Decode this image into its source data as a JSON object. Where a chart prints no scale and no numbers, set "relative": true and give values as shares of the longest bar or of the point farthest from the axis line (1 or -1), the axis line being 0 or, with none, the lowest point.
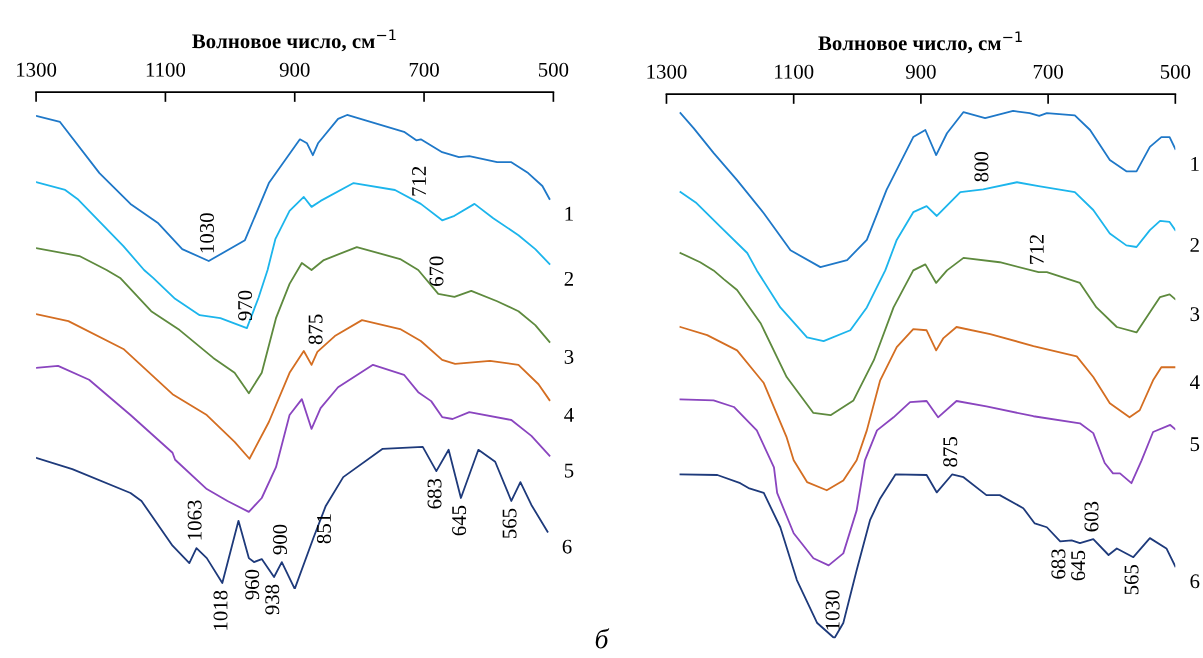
{
  "chart_data": [
    {
      "type": "line",
      "relative": true,
      "xlabel": "Волновое число, см$^{−1}$",
      "xlim": [
        1300,
        500
      ],
      "xticks": [
        1300,
        1100,
        900,
        700,
        500
      ],
      "grid": false,
      "legend": false,
      "marker": "none",
      "line_style": "solid",
      "series": [
        {
          "name": "1",
          "color": "#1f78c8",
          "x": [
            1300,
            1263,
            1202,
            1154,
            1111,
            1074,
            1033,
            977,
            940,
            892,
            881,
            872,
            864,
            833,
            819,
            731,
            712,
            705,
            672,
            646,
            630,
            587,
            565,
            539,
            517,
            506
          ],
          "values": [
            -0.048,
            -0.06,
            -0.163,
            -0.225,
            -0.264,
            -0.316,
            -0.34,
            -0.298,
            -0.183,
            -0.095,
            -0.103,
            -0.127,
            -0.103,
            -0.054,
            -0.046,
            -0.08,
            -0.097,
            -0.095,
            -0.121,
            -0.131,
            -0.129,
            -0.141,
            -0.141,
            -0.163,
            -0.189,
            -0.215
          ]
        },
        {
          "name": "2",
          "color": "#1cb5ec",
          "x": [
            1300,
            1255,
            1236,
            1165,
            1133,
            1119,
            1085,
            1047,
            1015,
            974,
            956,
            942,
            930,
            908,
            886,
            874,
            860,
            809,
            745,
            705,
            672,
            653,
            622,
            593,
            554,
            528,
            506
          ],
          "values": [
            -0.181,
            -0.197,
            -0.215,
            -0.31,
            -0.358,
            -0.374,
            -0.416,
            -0.449,
            -0.455,
            -0.475,
            -0.414,
            -0.358,
            -0.296,
            -0.239,
            -0.211,
            -0.231,
            -0.219,
            -0.183,
            -0.197,
            -0.225,
            -0.258,
            -0.249,
            -0.225,
            -0.254,
            -0.288,
            -0.316,
            -0.346
          ]
        },
        {
          "name": "3",
          "color": "#5e8a3e",
          "x": [
            1300,
            1233,
            1191,
            1170,
            1122,
            1078,
            1026,
            993,
            971,
            951,
            929,
            908,
            889,
            874,
            855,
            804,
            737,
            709,
            678,
            653,
            627,
            587,
            554,
            528,
            506
          ],
          "values": [
            -0.314,
            -0.33,
            -0.358,
            -0.374,
            -0.441,
            -0.479,
            -0.535,
            -0.565,
            -0.606,
            -0.565,
            -0.455,
            -0.386,
            -0.344,
            -0.358,
            -0.338,
            -0.312,
            -0.336,
            -0.358,
            -0.406,
            -0.412,
            -0.4,
            -0.421,
            -0.441,
            -0.469,
            -0.503
          ]
        },
        {
          "name": "4",
          "color": "#d46e22",
          "x": [
            1300,
            1250,
            1165,
            1089,
            1036,
            993,
            970,
            940,
            908,
            886,
            874,
            865,
            838,
            796,
            737,
            705,
            672,
            652,
            598,
            554,
            523,
            506
          ],
          "values": [
            -0.447,
            -0.461,
            -0.517,
            -0.608,
            -0.65,
            -0.704,
            -0.738,
            -0.664,
            -0.565,
            -0.521,
            -0.549,
            -0.523,
            -0.491,
            -0.459,
            -0.477,
            -0.501,
            -0.539,
            -0.547,
            -0.541,
            -0.549,
            -0.588,
            -0.62
          ]
        },
        {
          "name": "5",
          "color": "#8a45bf",
          "x": [
            1300,
            1266,
            1218,
            1154,
            1089,
            1085,
            1036,
            1004,
            971,
            951,
            929,
            908,
            889,
            874,
            860,
            833,
            779,
            731,
            709,
            689,
            672,
            656,
            630,
            565,
            534,
            506
          ],
          "values": [
            -0.555,
            -0.551,
            -0.579,
            -0.65,
            -0.726,
            -0.74,
            -0.799,
            -0.823,
            -0.845,
            -0.817,
            -0.755,
            -0.65,
            -0.618,
            -0.678,
            -0.636,
            -0.594,
            -0.549,
            -0.569,
            -0.604,
            -0.622,
            -0.654,
            -0.658,
            -0.644,
            -0.66,
            -0.692,
            -0.732
          ]
        },
        {
          "name": "6",
          "color": "#1e3a7b",
          "x": [
            1300,
            1244,
            1154,
            1137,
            1089,
            1063,
            1052,
            1036,
            1012,
            987,
            971,
            963,
            951,
            932,
            920,
            900,
            871,
            852,
            825,
            764,
            702,
            681,
            662,
            643,
            616,
            590,
            565,
            551,
            534,
            509
          ],
          "values": [
            -0.736,
            -0.759,
            -0.807,
            -0.823,
            -0.913,
            -0.948,
            -0.918,
            -0.938,
            -0.988,
            -0.863,
            -0.938,
            -0.946,
            -0.94,
            -0.976,
            -0.946,
            -1.0,
            -0.897,
            -0.833,
            -0.775,
            -0.718,
            -0.714,
            -0.763,
            -0.72,
            -0.817,
            -0.72,
            -0.744,
            -0.823,
            -0.785,
            -0.831,
            -0.885
          ]
        }
      ],
      "annotations": [
        {
          "text": "1030",
          "x": 1033,
          "y": -0.34
        },
        {
          "text": "712",
          "x": 705,
          "y": -0.225
        },
        {
          "text": "670",
          "x": 678,
          "y": -0.406
        },
        {
          "text": "970",
          "x": 974,
          "y": -0.475
        },
        {
          "text": "875",
          "x": 865,
          "y": -0.523
        },
        {
          "text": "1063",
          "x": 1052,
          "y": -0.918
        },
        {
          "text": "1018",
          "x": 1012,
          "y": -0.988
        },
        {
          "text": "960",
          "x": 963,
          "y": -0.946
        },
        {
          "text": "938",
          "x": 932,
          "y": -0.976
        },
        {
          "text": "900",
          "x": 920,
          "y": -0.946
        },
        {
          "text": "851",
          "x": 852,
          "y": -0.833
        },
        {
          "text": "683",
          "x": 681,
          "y": -0.763
        },
        {
          "text": "645",
          "x": 643,
          "y": -0.817
        },
        {
          "text": "565",
          "x": 565,
          "y": -0.823
        },
        "б"
      ]
    },
    {
      "type": "line",
      "relative": true,
      "xlabel": "Волновое число, см$^{−1}$",
      "xlim": [
        1300,
        500
      ],
      "xticks": [
        1300,
        1100,
        900,
        700,
        500
      ],
      "grid": false,
      "legend": false,
      "marker": "none",
      "line_style": "solid",
      "series": [
        {
          "name": "1",
          "color": "#1f78c8",
          "x": [
            1278,
            1257,
            1226,
            1189,
            1147,
            1105,
            1058,
            1016,
            985,
            954,
            912,
            893,
            876,
            859,
            833,
            799,
            755,
            729,
            714,
            702,
            658,
            634,
            603,
            577,
            561,
            540,
            522,
            509,
            500
          ],
          "values": [
            -0.035,
            -0.063,
            -0.108,
            -0.158,
            -0.219,
            -0.287,
            -0.318,
            -0.305,
            -0.268,
            -0.176,
            -0.079,
            -0.066,
            -0.112,
            -0.072,
            -0.033,
            -0.044,
            -0.031,
            -0.035,
            -0.04,
            -0.035,
            -0.039,
            -0.066,
            -0.121,
            -0.142,
            -0.142,
            -0.097,
            -0.079,
            -0.079,
            -0.101
          ]
        },
        {
          "name": "2",
          "color": "#1cb5ec",
          "x": [
            1278,
            1254,
            1215,
            1173,
            1158,
            1121,
            1079,
            1053,
            1011,
            985,
            956,
            938,
            912,
            891,
            875,
            838,
            802,
            749,
            715,
            658,
            629,
            603,
            577,
            561,
            540,
            524,
            509,
            500
          ],
          "values": [
            -0.18,
            -0.199,
            -0.244,
            -0.292,
            -0.324,
            -0.392,
            -0.447,
            -0.454,
            -0.434,
            -0.392,
            -0.324,
            -0.268,
            -0.217,
            -0.206,
            -0.224,
            -0.18,
            -0.175,
            -0.162,
            -0.169,
            -0.18,
            -0.213,
            -0.256,
            -0.278,
            -0.281,
            -0.25,
            -0.233,
            -0.235,
            -0.25
          ]
        },
        {
          "name": "3",
          "color": "#5e8a3e",
          "x": [
            1278,
            1247,
            1226,
            1210,
            1189,
            1152,
            1111,
            1069,
            1042,
            1006,
            974,
            943,
            912,
            893,
            876,
            859,
            833,
            776,
            715,
            702,
            650,
            624,
            592,
            561,
            535,
            524,
            509,
            500
          ],
          "values": [
            -0.292,
            -0.309,
            -0.324,
            -0.34,
            -0.36,
            -0.421,
            -0.52,
            -0.586,
            -0.59,
            -0.563,
            -0.489,
            -0.392,
            -0.324,
            -0.313,
            -0.347,
            -0.324,
            -0.301,
            -0.309,
            -0.327,
            -0.327,
            -0.347,
            -0.392,
            -0.428,
            -0.438,
            -0.392,
            -0.373,
            -0.368,
            -0.377
          ]
        },
        {
          "name": "4",
          "color": "#d46e22",
          "x": [
            1278,
            1236,
            1189,
            1147,
            1111,
            1100,
            1079,
            1048,
            1022,
            1001,
            985,
            964,
            938,
            912,
            891,
            876,
            865,
            844,
            791,
            723,
            655,
            629,
            603,
            572,
            556,
            535,
            522,
            500
          ],
          "values": [
            -0.428,
            -0.443,
            -0.471,
            -0.531,
            -0.631,
            -0.673,
            -0.713,
            -0.728,
            -0.71,
            -0.673,
            -0.618,
            -0.526,
            -0.465,
            -0.432,
            -0.434,
            -0.471,
            -0.449,
            -0.428,
            -0.441,
            -0.463,
            -0.482,
            -0.52,
            -0.568,
            -0.594,
            -0.581,
            -0.526,
            -0.502,
            -0.502
          ]
        },
        {
          "name": "5",
          "color": "#8a45bf",
          "x": [
            1278,
            1226,
            1194,
            1158,
            1131,
            1126,
            1100,
            1069,
            1045,
            1022,
            1001,
            988,
            969,
            943,
            917,
            891,
            873,
            844,
            797,
            723,
            650,
            629,
            611,
            598,
            587,
            569,
            553,
            535,
            508,
            500
          ],
          "values": [
            -0.561,
            -0.563,
            -0.575,
            -0.618,
            -0.686,
            -0.733,
            -0.807,
            -0.853,
            -0.866,
            -0.844,
            -0.765,
            -0.673,
            -0.618,
            -0.594,
            -0.566,
            -0.564,
            -0.594,
            -0.564,
            -0.574,
            -0.592,
            -0.605,
            -0.623,
            -0.678,
            -0.697,
            -0.697,
            -0.715,
            -0.673,
            -0.621,
            -0.608,
            -0.616
          ]
        },
        {
          "name": "6",
          "color": "#1e3a7b",
          "x": [
            1278,
            1220,
            1184,
            1171,
            1147,
            1121,
            1095,
            1063,
            1036,
            1022,
            1001,
            980,
            964,
            940,
            891,
            875,
            851,
            833,
            797,
            776,
            739,
            721,
            702,
            681,
            663,
            650,
            629,
            605,
            592,
            566,
            540,
            514,
            500
          ],
          "values": [
            -0.699,
            -0.7,
            -0.715,
            -0.724,
            -0.733,
            -0.796,
            -0.893,
            -0.972,
            -1.0,
            -0.972,
            -0.875,
            -0.783,
            -0.743,
            -0.699,
            -0.7,
            -0.732,
            -0.699,
            -0.704,
            -0.737,
            -0.737,
            -0.761,
            -0.789,
            -0.796,
            -0.822,
            -0.82,
            -0.825,
            -0.818,
            -0.847,
            -0.835,
            -0.851,
            -0.816,
            -0.835,
            -0.868
          ]
        }
      ],
      "annotations": [
        {
          "text": "800",
          "x": 802,
          "y": -0.175
        },
        {
          "text": "712",
          "x": 715,
          "y": -0.327
        },
        {
          "text": "875",
          "x": 851,
          "y": -0.699
        },
        {
          "text": "603",
          "x": 629,
          "y": -0.818
        },
        {
          "text": "1030",
          "x": 1036,
          "y": -1.0
        },
        {
          "text": "683",
          "x": 681,
          "y": -0.822
        },
        {
          "text": "645",
          "x": 650,
          "y": -0.825
        },
        {
          "text": "565",
          "x": 566,
          "y": -0.851
        }
      ]
    }
  ]
}
